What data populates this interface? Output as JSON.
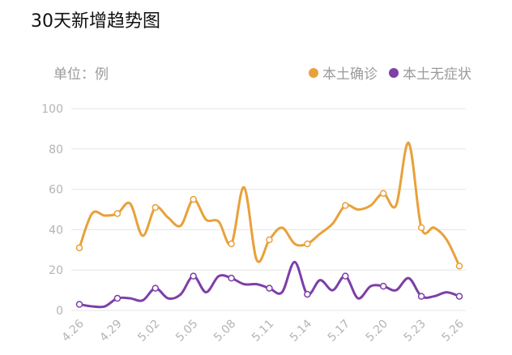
{
  "title": "30天新增趋势图",
  "unit_label": "单位：例",
  "colors": {
    "local_confirmed": "#e8a13a",
    "local_asymptomatic": "#7d3fa8",
    "grid": "#e6e6e6"
  },
  "chart_data": {
    "type": "line",
    "title": "30天新增趋势图",
    "ylabel": "单位：例",
    "ylim": [
      0,
      100
    ],
    "yticks": [
      0,
      20,
      40,
      60,
      80,
      100
    ],
    "grid": true,
    "smooth": true,
    "legend_position": "top-right",
    "x": [
      "4.26",
      "4.27",
      "4.28",
      "4.29",
      "4.30",
      "5.01",
      "5.02",
      "5.03",
      "5.04",
      "5.05",
      "5.06",
      "5.07",
      "5.08",
      "5.09",
      "5.10",
      "5.11",
      "5.12",
      "5.13",
      "5.14",
      "5.15",
      "5.16",
      "5.17",
      "5.18",
      "5.19",
      "5.20",
      "5.21",
      "5.22",
      "5.23",
      "5.24",
      "5.25",
      "5.26"
    ],
    "xtick_labels": [
      "4.26",
      "4.29",
      "5.02",
      "5.05",
      "5.08",
      "5.11",
      "5.14",
      "5.17",
      "5.20",
      "5.23",
      "5.26"
    ],
    "xtick_indices": [
      0,
      3,
      6,
      9,
      12,
      15,
      18,
      21,
      24,
      27,
      30
    ],
    "series": [
      {
        "name": "本土确诊",
        "values": [
          31,
          48,
          47,
          48,
          53,
          37,
          51,
          46,
          42,
          55,
          45,
          44,
          33,
          61,
          25,
          35,
          41,
          33,
          33,
          38,
          43,
          52,
          50,
          52,
          58,
          52,
          83,
          41,
          41,
          35,
          22
        ]
      },
      {
        "name": "本土无症状",
        "values": [
          3,
          2,
          2,
          6,
          6,
          5,
          11,
          6,
          8,
          17,
          9,
          17,
          16,
          13,
          13,
          11,
          9,
          24,
          8,
          15,
          10,
          17,
          6,
          12,
          12,
          10,
          16,
          7,
          7,
          9,
          7
        ]
      }
    ]
  }
}
